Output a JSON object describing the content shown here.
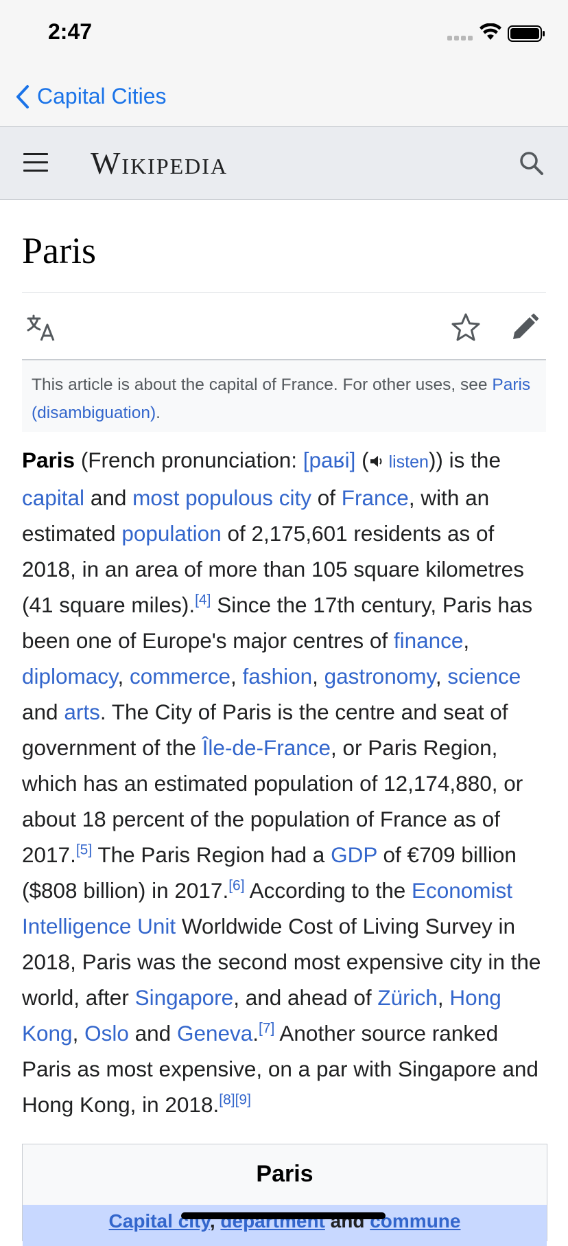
{
  "status": {
    "time": "2:47"
  },
  "nav": {
    "back_label": "Capital Cities"
  },
  "header": {
    "logo": "Wikipedia"
  },
  "article": {
    "title": "Paris",
    "hatnote": {
      "text_before": "This article is about the capital of France. For other uses, see ",
      "link": "Paris (disambiguation)",
      "text_after": "."
    },
    "lead": {
      "t1": "Paris",
      "t2": " (French pronunciation: ",
      "ipa": "[paʁi]",
      "t3": " (",
      "listen": "listen",
      "t4": ")) is the ",
      "l_capital": "capital",
      "t5": " and ",
      "l_most_populous": "most populous city",
      "t6": " of ",
      "l_france": "France",
      "t7": ", with an estimated ",
      "l_population": "population",
      "t8": " of 2,175,601 residents as of 2018, in an area of more than 105 square kilometres (41 square miles).",
      "ref4": "[4]",
      "t9": " Since the 17th century, Paris has been one of Europe's major centres of ",
      "l_finance": "finance",
      "c1": ", ",
      "l_diplomacy": "diplomacy",
      "c2": ", ",
      "l_commerce": "commerce",
      "c3": ", ",
      "l_fashion": "fashion",
      "c4": ", ",
      "l_gastronomy": "gastronomy",
      "c5": ", ",
      "l_science": "science",
      "t10": " and ",
      "l_arts": "arts",
      "t11": ". The City of Paris is the centre and seat of government of the ",
      "l_idf": "Île-de-France",
      "t12": ", or Paris Region, which has an estimated population of 12,174,880, or about 18 percent of the population of France as of 2017.",
      "ref5": "[5]",
      "t13": " The Paris Region had a ",
      "l_gdp": "GDP",
      "t14": " of €709 billion ($808 billion) in 2017.",
      "ref6": "[6]",
      "t15": " According to the ",
      "l_eiu": "Economist Intelligence Unit",
      "t16": " Worldwide Cost of Living Survey in 2018, Paris was the second most expensive city in the world, after ",
      "l_singapore": "Singapore",
      "t17": ", and ahead of ",
      "l_zurich": "Zürich",
      "c6": ", ",
      "l_hongkong": "Hong Kong",
      "c7": ", ",
      "l_oslo": "Oslo",
      "t18": " and ",
      "l_geneva": "Geneva",
      "t19": ".",
      "ref7": "[7]",
      "t20": " Another source ranked Paris as most expensive, on a par with Singapore and Hong Kong, in 2018.",
      "ref8": "[8]",
      "ref9": "[9]"
    },
    "infobox": {
      "title": "Paris",
      "sub_link1": "Capital city",
      "sub_sep": ", ",
      "sub_link2": "department",
      "sub_and": " and ",
      "sub_link3": "commune"
    }
  },
  "icons": {
    "back": "chevron-left-icon",
    "menu": "hamburger-menu-icon",
    "search": "search-icon",
    "translate": "translate-icon",
    "watch": "star-icon",
    "edit": "pencil-icon",
    "speaker": "speaker-icon"
  },
  "colors": {
    "link": "#3366cc",
    "ios_blue": "#1a73e8",
    "header_bg": "#eaecf0"
  }
}
